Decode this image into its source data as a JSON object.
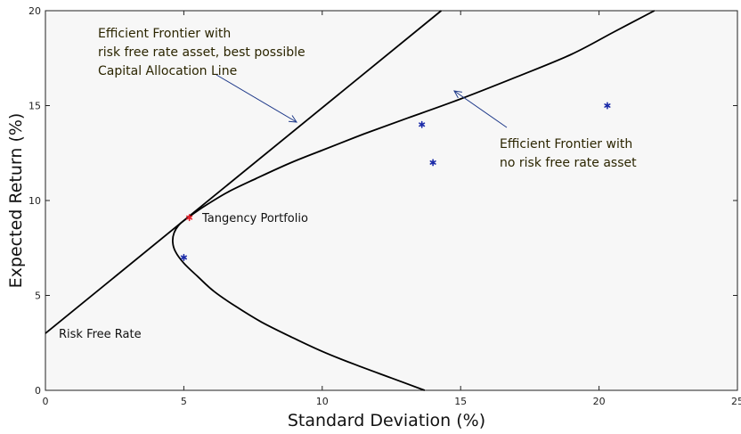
{
  "chart_data": {
    "type": "scatter",
    "xlabel": "Standard Deviation (%)",
    "ylabel": "Expected Return (%)",
    "xlim": [
      0,
      25
    ],
    "ylim": [
      0,
      20
    ],
    "xticks": [
      "0",
      "5",
      "10",
      "15",
      "20",
      "25"
    ],
    "yticks": [
      "0",
      "5",
      "10",
      "15",
      "20"
    ],
    "grid": false,
    "plot_background": "#f7f7f7",
    "line_color": "#000000",
    "asset_color": "#1a2aa8",
    "tangency_color": "#e8202a",
    "asset_points": [
      {
        "x": 5.0,
        "y": 7.0
      },
      {
        "x": 13.6,
        "y": 14.0
      },
      {
        "x": 14.0,
        "y": 12.0
      },
      {
        "x": 20.3,
        "y": 15.0
      }
    ],
    "tangency_point": {
      "x": 5.2,
      "y": 9.1
    },
    "risk_free_rate": {
      "x": 0,
      "y": 3.0
    },
    "capital_allocation_line": {
      "x": [
        0,
        14.3
      ],
      "y": [
        3.0,
        20.0
      ]
    },
    "efficient_frontier": {
      "x": [
        13.7,
        12.5,
        11.2,
        10.0,
        8.9,
        7.8,
        6.9,
        6.1,
        5.5,
        5.0,
        4.7,
        4.6,
        4.65,
        4.85,
        5.2,
        5.8,
        6.6,
        7.6,
        8.8,
        10.0,
        11.5,
        13.1,
        15.0,
        17.0,
        19.0,
        20.5,
        22.0
      ],
      "y": [
        0.0,
        0.65,
        1.35,
        2.05,
        2.8,
        3.6,
        4.4,
        5.2,
        6.0,
        6.7,
        7.3,
        7.8,
        8.3,
        8.75,
        9.15,
        9.75,
        10.45,
        11.15,
        11.95,
        12.65,
        13.5,
        14.35,
        15.35,
        16.5,
        17.7,
        18.85,
        20.0
      ]
    },
    "annotations": [
      {
        "lines": [
          "Efficient Frontier with",
          "risk free rate asset, best possible",
          "Capital Allocation Line"
        ]
      },
      {
        "lines": [
          "Efficient Frontier with",
          "no risk free rate asset"
        ]
      },
      {
        "text": "Tangency Portfolio"
      },
      {
        "text": "Risk Free Rate"
      }
    ],
    "annotation_color": "#2b2500",
    "arrow_color": "#1f3a8a"
  }
}
